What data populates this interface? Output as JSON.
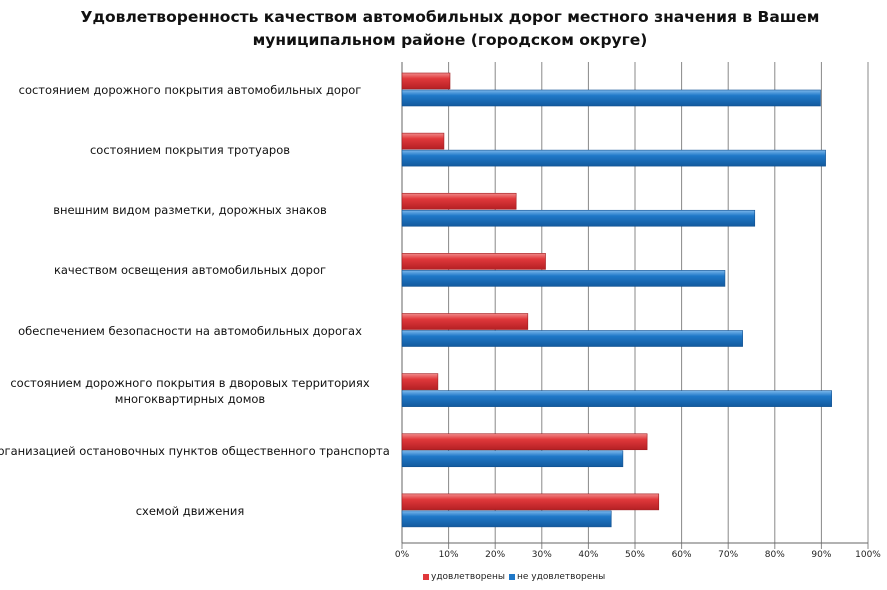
{
  "chart_data": {
    "type": "bar",
    "orientation": "horizontal",
    "title": "Удовлетворенность качеством автомобильных дорог местного значения в Вашем муниципальном районе (городском округе)",
    "title_lines": [
      "Удовлетворенность качеством автомобильных дорог местного значения в Вашем",
      "муниципальном районе (городском округе)"
    ],
    "categories": [
      "состоянием дорожного покрытия автомобильных дорог",
      "состоянием покрытия тротуаров",
      "внешним видом разметки, дорожных знаков",
      "качеством освещения автомобильных дорог",
      "обеспечением безопасности на автомобильных дорогах",
      "состоянием дорожного покрытия в дворовых территориях многоквартирных домов",
      "организацией остановочных пунктов общественного транспорта",
      "схемой движения"
    ],
    "category_lines": [
      [
        "состоянием дорожного покрытия автомобильных дорог"
      ],
      [
        "состоянием покрытия тротуаров"
      ],
      [
        "внешним видом разметки, дорожных знаков"
      ],
      [
        "качеством освещения автомобильных дорог"
      ],
      [
        "обеспечением безопасности на автомобильных дорогах"
      ],
      [
        "состоянием дорожного покрытия в дворовых территориях",
        "многоквартирных домов"
      ],
      [
        "организацией остановочных пунктов общественного транспорта"
      ],
      [
        "схемой движения"
      ]
    ],
    "series": [
      {
        "name": "удовлетворены",
        "color": "#e0383b",
        "values": [
          10.3,
          9.0,
          24.5,
          30.8,
          27.0,
          7.7,
          52.6,
          55.1
        ]
      },
      {
        "name": "не удовлетворены",
        "color": "#1f78c8",
        "values": [
          89.8,
          90.9,
          75.7,
          69.3,
          73.1,
          92.2,
          47.4,
          44.9
        ]
      }
    ],
    "xlim": [
      0,
      100
    ],
    "xticks": [
      "0%",
      "10%",
      "20%",
      "30%",
      "40%",
      "50%",
      "60%",
      "70%",
      "80%",
      "90%",
      "100%"
    ],
    "grid": "vertical",
    "legend": "bottom"
  }
}
